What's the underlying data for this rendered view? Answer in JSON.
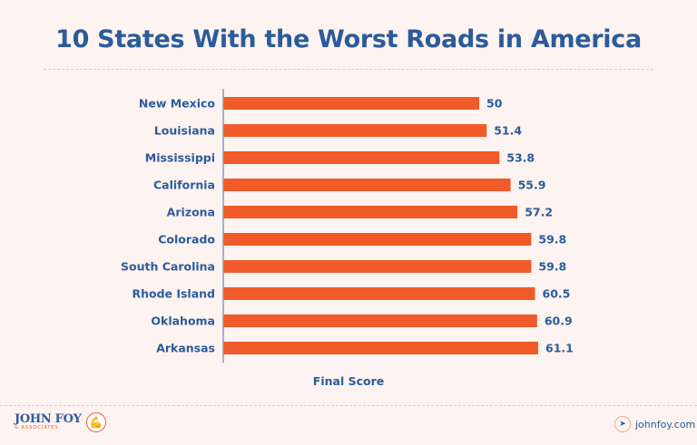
{
  "chart_data": {
    "type": "bar",
    "orientation": "horizontal",
    "title": "10 States With the Worst Roads in America",
    "xlabel": "Final Score",
    "categories": [
      "New Mexico",
      "Louisiana",
      "Mississippi",
      "California",
      "Arizona",
      "Colorado",
      "South Carolina",
      "Rhode Island",
      "Oklahoma",
      "Arkansas"
    ],
    "values": [
      50,
      51.4,
      53.8,
      55.9,
      57.2,
      59.8,
      59.8,
      60.5,
      60.9,
      61.1
    ],
    "data_labels": [
      "50",
      "51.4",
      "53.8",
      "55.9",
      "57.2",
      "59.8",
      "59.8",
      "60.5",
      "60.9",
      "61.1"
    ],
    "bar_color": "#f15a29",
    "text_color": "#2c5b9b",
    "grid": false,
    "legend": "none"
  },
  "footer": {
    "logo_text": "JOHN FOY",
    "logo_sub": "& ASSOCIATES",
    "website": "johnfoy.com",
    "website_icon": "cursor-arrow-icon"
  }
}
